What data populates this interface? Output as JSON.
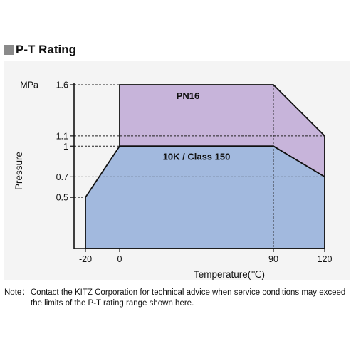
{
  "header": {
    "title": "P-T Rating"
  },
  "chart_data": {
    "type": "area",
    "xlabel": "Temperature(℃)",
    "ylabel": "Pressure",
    "y_unit": "MPa",
    "x_ticks": [
      "-20",
      "0",
      "90",
      "120"
    ],
    "y_ticks": [
      "1.6",
      "1.1",
      "1",
      "0.7",
      "0.5"
    ],
    "xlim": [
      -20,
      120
    ],
    "ylim": [
      0,
      1.6
    ],
    "series": [
      {
        "name": "PN16",
        "color": "#c7b4da",
        "points": [
          [
            0,
            1.0
          ],
          [
            0,
            1.6
          ],
          [
            90,
            1.6
          ],
          [
            120,
            1.1
          ],
          [
            120,
            0.7
          ],
          [
            90,
            1.0
          ]
        ]
      },
      {
        "name": "10K / Class 150",
        "color": "#a2b9de",
        "points": [
          [
            -20,
            0
          ],
          [
            -20,
            0.5
          ],
          [
            0,
            1.0
          ],
          [
            90,
            1.0
          ],
          [
            120,
            0.7
          ],
          [
            120,
            0
          ]
        ]
      }
    ]
  },
  "note": {
    "label": "Note：",
    "text": "Contact the KITZ Corporation for technical advice when service conditions may exceed the limits of the P-T rating range shown here."
  }
}
